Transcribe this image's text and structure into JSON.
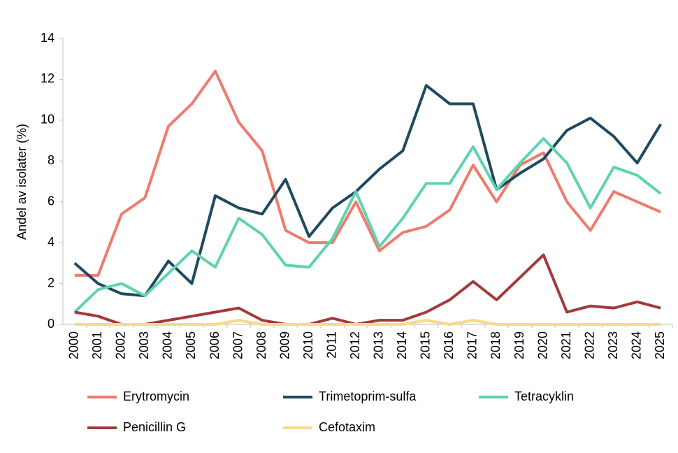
{
  "chart_data": {
    "type": "line",
    "y_label": "Andel av isolater (%)",
    "categories": [
      "2000",
      "2001",
      "2002",
      "2003",
      "2004",
      "2005",
      "2006",
      "2007",
      "2008",
      "2009",
      "2010",
      "2011",
      "2012",
      "2013",
      "2014",
      "2015",
      "2016",
      "2017",
      "2018",
      "2019",
      "2020",
      "2021",
      "2022",
      "2023",
      "2024",
      "2025"
    ],
    "series": [
      {
        "name": "Erytromycin",
        "color": "#ee7b6e",
        "values": [
          2.4,
          2.4,
          5.4,
          6.2,
          9.7,
          10.8,
          12.4,
          9.9,
          8.5,
          4.6,
          4.0,
          4.0,
          6.0,
          3.6,
          4.5,
          4.8,
          5.6,
          7.8,
          6.0,
          7.8,
          8.4,
          6.0,
          4.6,
          6.5,
          6.0,
          5.5
        ]
      },
      {
        "name": "Trimetoprim-sulfa",
        "color": "#1e4a5f",
        "values": [
          3.0,
          2.0,
          1.5,
          1.4,
          3.1,
          2.0,
          6.3,
          5.7,
          5.4,
          7.1,
          4.3,
          5.7,
          6.5,
          7.6,
          8.5,
          11.7,
          10.8,
          10.8,
          6.6,
          7.4,
          8.1,
          9.5,
          10.1,
          9.2,
          7.9,
          9.8
        ]
      },
      {
        "name": "Tetracyklin",
        "color": "#5fd3b0",
        "values": [
          0.6,
          1.7,
          2.0,
          1.4,
          2.5,
          3.6,
          2.8,
          5.2,
          4.4,
          2.9,
          2.8,
          4.2,
          6.5,
          3.8,
          5.2,
          6.9,
          6.9,
          8.7,
          6.6,
          7.9,
          9.1,
          7.9,
          5.7,
          7.7,
          7.3,
          6.4
        ]
      },
      {
        "name": "Penicillin G",
        "color": "#a33a3a",
        "values": [
          0.6,
          0.4,
          0,
          0,
          0.2,
          0.4,
          0.6,
          0.8,
          0.2,
          0,
          0,
          0.3,
          0,
          0.2,
          0.2,
          0.6,
          1.2,
          2.1,
          1.2,
          2.3,
          3.4,
          0.6,
          0.9,
          0.8,
          1.1,
          0.8
        ]
      },
      {
        "name": "Cefotaxim",
        "color": "#f7d98b",
        "values": [
          0,
          0,
          0,
          0,
          0,
          0,
          0,
          0.2,
          0,
          0,
          0,
          0,
          0,
          0,
          0,
          0.2,
          0,
          0.2,
          0,
          0,
          0,
          0,
          0,
          0,
          0,
          0
        ]
      }
    ],
    "ylim": [
      0,
      14
    ],
    "yticks": [
      0,
      2,
      4,
      6,
      8,
      10,
      12,
      14
    ],
    "grid": false
  }
}
